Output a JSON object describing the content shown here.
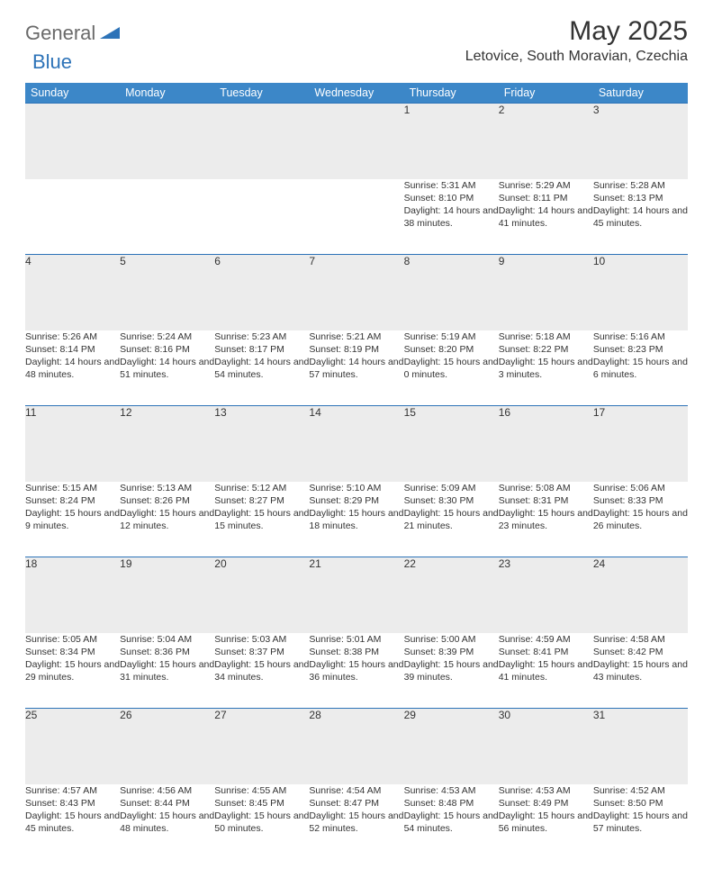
{
  "brand": {
    "word1": "General",
    "word2": "Blue"
  },
  "title": "May 2025",
  "location": "Letovice, South Moravian, Czechia",
  "colors": {
    "header_bg": "#3c87c8",
    "header_text": "#ffffff",
    "daynum_bg": "#ececec",
    "rule": "#2d73b8",
    "text": "#333333",
    "logo_gray": "#6a6a6a",
    "logo_blue": "#2d73b8",
    "page_bg": "#ffffff"
  },
  "weekdays": [
    "Sunday",
    "Monday",
    "Tuesday",
    "Wednesday",
    "Thursday",
    "Friday",
    "Saturday"
  ],
  "weeks": [
    [
      null,
      null,
      null,
      null,
      {
        "n": "1",
        "sr": "5:31 AM",
        "ss": "8:10 PM",
        "dl": "14 hours and 38 minutes."
      },
      {
        "n": "2",
        "sr": "5:29 AM",
        "ss": "8:11 PM",
        "dl": "14 hours and 41 minutes."
      },
      {
        "n": "3",
        "sr": "5:28 AM",
        "ss": "8:13 PM",
        "dl": "14 hours and 45 minutes."
      }
    ],
    [
      {
        "n": "4",
        "sr": "5:26 AM",
        "ss": "8:14 PM",
        "dl": "14 hours and 48 minutes."
      },
      {
        "n": "5",
        "sr": "5:24 AM",
        "ss": "8:16 PM",
        "dl": "14 hours and 51 minutes."
      },
      {
        "n": "6",
        "sr": "5:23 AM",
        "ss": "8:17 PM",
        "dl": "14 hours and 54 minutes."
      },
      {
        "n": "7",
        "sr": "5:21 AM",
        "ss": "8:19 PM",
        "dl": "14 hours and 57 minutes."
      },
      {
        "n": "8",
        "sr": "5:19 AM",
        "ss": "8:20 PM",
        "dl": "15 hours and 0 minutes."
      },
      {
        "n": "9",
        "sr": "5:18 AM",
        "ss": "8:22 PM",
        "dl": "15 hours and 3 minutes."
      },
      {
        "n": "10",
        "sr": "5:16 AM",
        "ss": "8:23 PM",
        "dl": "15 hours and 6 minutes."
      }
    ],
    [
      {
        "n": "11",
        "sr": "5:15 AM",
        "ss": "8:24 PM",
        "dl": "15 hours and 9 minutes."
      },
      {
        "n": "12",
        "sr": "5:13 AM",
        "ss": "8:26 PM",
        "dl": "15 hours and 12 minutes."
      },
      {
        "n": "13",
        "sr": "5:12 AM",
        "ss": "8:27 PM",
        "dl": "15 hours and 15 minutes."
      },
      {
        "n": "14",
        "sr": "5:10 AM",
        "ss": "8:29 PM",
        "dl": "15 hours and 18 minutes."
      },
      {
        "n": "15",
        "sr": "5:09 AM",
        "ss": "8:30 PM",
        "dl": "15 hours and 21 minutes."
      },
      {
        "n": "16",
        "sr": "5:08 AM",
        "ss": "8:31 PM",
        "dl": "15 hours and 23 minutes."
      },
      {
        "n": "17",
        "sr": "5:06 AM",
        "ss": "8:33 PM",
        "dl": "15 hours and 26 minutes."
      }
    ],
    [
      {
        "n": "18",
        "sr": "5:05 AM",
        "ss": "8:34 PM",
        "dl": "15 hours and 29 minutes."
      },
      {
        "n": "19",
        "sr": "5:04 AM",
        "ss": "8:36 PM",
        "dl": "15 hours and 31 minutes."
      },
      {
        "n": "20",
        "sr": "5:03 AM",
        "ss": "8:37 PM",
        "dl": "15 hours and 34 minutes."
      },
      {
        "n": "21",
        "sr": "5:01 AM",
        "ss": "8:38 PM",
        "dl": "15 hours and 36 minutes."
      },
      {
        "n": "22",
        "sr": "5:00 AM",
        "ss": "8:39 PM",
        "dl": "15 hours and 39 minutes."
      },
      {
        "n": "23",
        "sr": "4:59 AM",
        "ss": "8:41 PM",
        "dl": "15 hours and 41 minutes."
      },
      {
        "n": "24",
        "sr": "4:58 AM",
        "ss": "8:42 PM",
        "dl": "15 hours and 43 minutes."
      }
    ],
    [
      {
        "n": "25",
        "sr": "4:57 AM",
        "ss": "8:43 PM",
        "dl": "15 hours and 45 minutes."
      },
      {
        "n": "26",
        "sr": "4:56 AM",
        "ss": "8:44 PM",
        "dl": "15 hours and 48 minutes."
      },
      {
        "n": "27",
        "sr": "4:55 AM",
        "ss": "8:45 PM",
        "dl": "15 hours and 50 minutes."
      },
      {
        "n": "28",
        "sr": "4:54 AM",
        "ss": "8:47 PM",
        "dl": "15 hours and 52 minutes."
      },
      {
        "n": "29",
        "sr": "4:53 AM",
        "ss": "8:48 PM",
        "dl": "15 hours and 54 minutes."
      },
      {
        "n": "30",
        "sr": "4:53 AM",
        "ss": "8:49 PM",
        "dl": "15 hours and 56 minutes."
      },
      {
        "n": "31",
        "sr": "4:52 AM",
        "ss": "8:50 PM",
        "dl": "15 hours and 57 minutes."
      }
    ]
  ],
  "labels": {
    "sunrise": "Sunrise: ",
    "sunset": "Sunset: ",
    "daylight": "Daylight: "
  }
}
